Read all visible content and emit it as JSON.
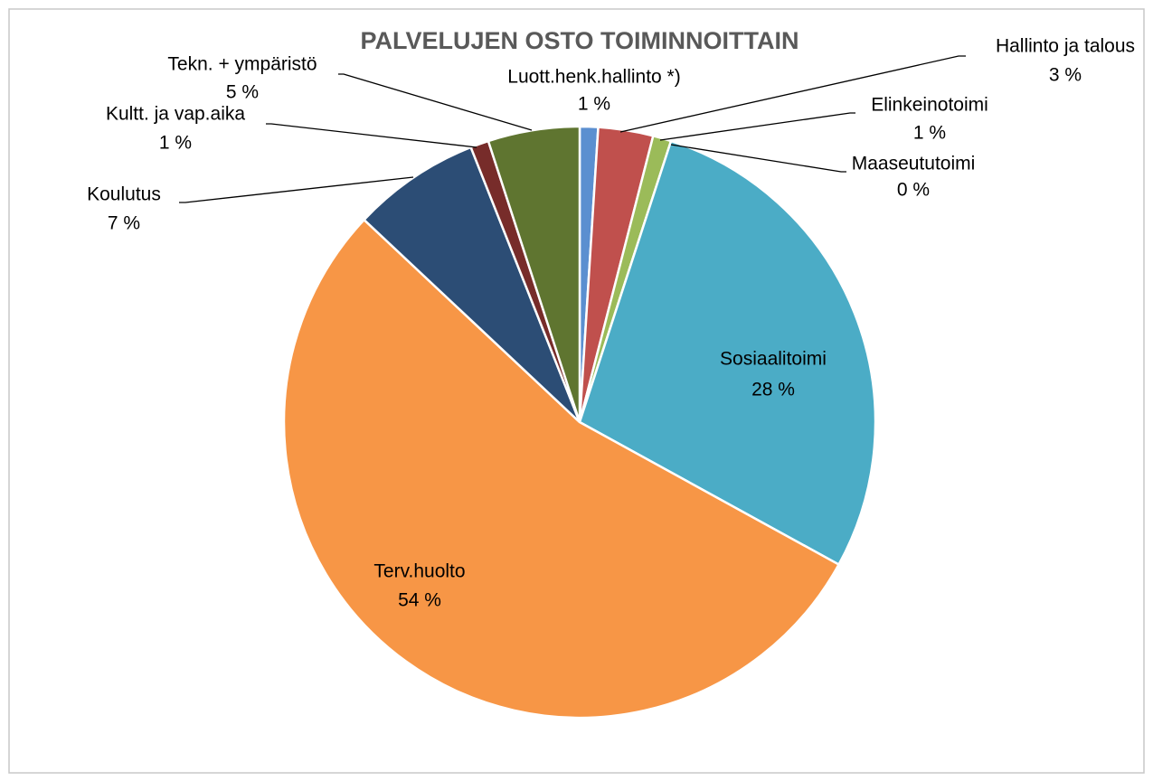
{
  "chart_data": {
    "type": "pie",
    "title": "PALVELUJEN OSTO TOIMINNOITTAIN",
    "categories": [
      "Luott.henk.hallinto *)",
      "Hallinto ja talous",
      "Elinkeinotoimi",
      "Maaseututoimi",
      "Sosiaalitoimi",
      "Terv.huolto",
      "Koulutus",
      "Kultt. ja vap.aika",
      "Tekn. + ympäristö"
    ],
    "values": [
      1,
      3,
      1,
      0,
      28,
      54,
      7,
      1,
      5
    ],
    "value_labels": [
      "1 %",
      "3 %",
      "1 %",
      "0 %",
      "28 %",
      "54 %",
      "7 %",
      "1 %",
      "5 %"
    ],
    "colors": [
      "#5b8fd0",
      "#c0504d",
      "#9bbb59",
      "#8064a2",
      "#4bacc6",
      "#f79646",
      "#2c4d75",
      "#772c2a",
      "#5f7530"
    ]
  }
}
